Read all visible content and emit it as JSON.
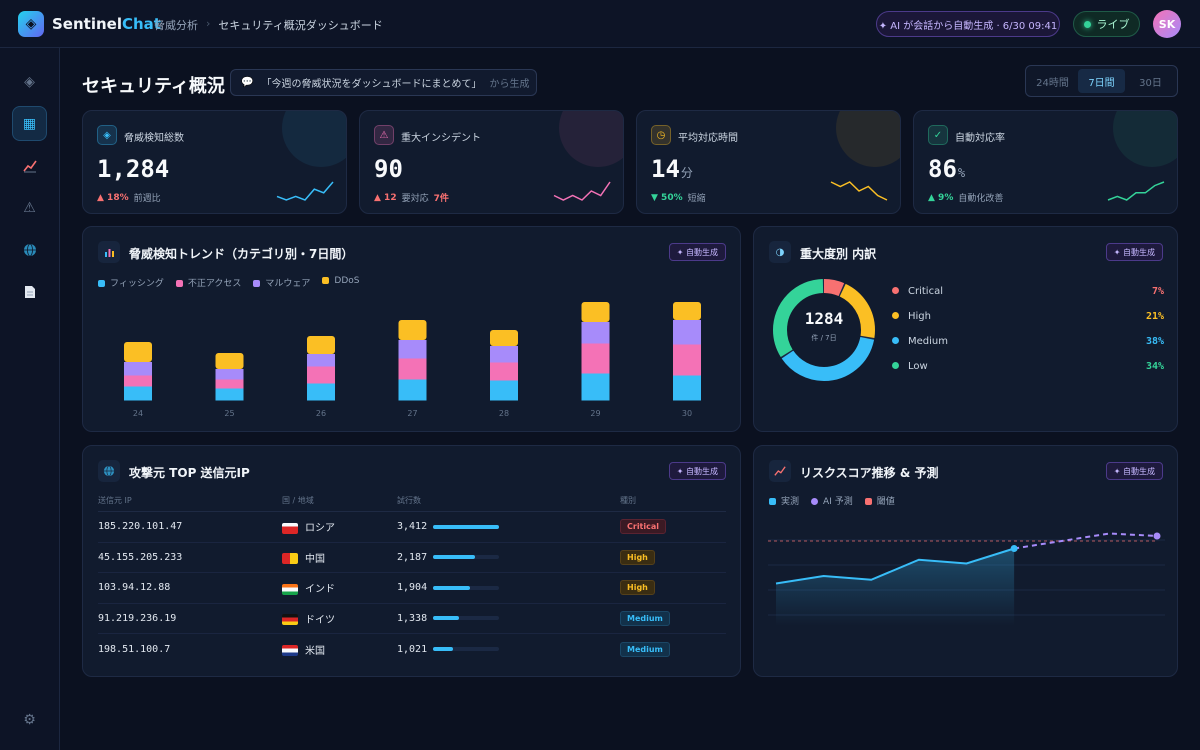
{
  "app": {
    "brand_a": "Sentinel",
    "brand_b": "Chat"
  },
  "breadcrumb": {
    "parent": "脅威分析",
    "sep": "›",
    "current": "セキュリティ概況ダッシュボード"
  },
  "header": {
    "ai_pill": "✦ AI が会話から自動生成 · 6/30 09:41",
    "live": "ライブ",
    "avatar": "SK"
  },
  "page": {
    "title": "セキュリティ概況",
    "prompt": "「今週の脅威状況をダッシュボードにまとめて」",
    "prompt_suffix": "から生成"
  },
  "range": [
    "24時間",
    "7日間",
    "30日"
  ],
  "range_selected": "7日間",
  "kpis": [
    {
      "label": "脅威検知総数",
      "value": "1,284",
      "unit": "",
      "delta": "▲ 18%",
      "extra": "",
      "note": "前週比",
      "delta_color": "#f87171",
      "color": "#38bdf8",
      "spark": [
        4,
        3,
        4,
        3,
        6,
        5,
        8
      ]
    },
    {
      "label": "重大インシデント",
      "value": "90",
      "unit": "",
      "delta": "▲ 12",
      "extra": "7件",
      "note": "要対応",
      "delta_color": "#f87171",
      "color": "#f472b6",
      "spark": [
        5,
        4,
        5,
        4,
        6,
        5,
        8
      ]
    },
    {
      "label": "平均対応時間",
      "value": "14",
      "unit": "分",
      "delta": "▼ 50%",
      "extra": "",
      "note": "短縮",
      "delta_color": "#34d399",
      "color": "#fbbf24",
      "spark": [
        7,
        6,
        7,
        5,
        6,
        4,
        3
      ]
    },
    {
      "label": "自動対応率",
      "value": "86",
      "unit": "%",
      "delta": "▲ 9%",
      "extra": "",
      "note": "自動化改善",
      "delta_color": "#34d399",
      "color": "#34d399",
      "spark": [
        3,
        4,
        3,
        5,
        5,
        7,
        8
      ]
    }
  ],
  "trend": {
    "title": "脅威検知トレンド（カテゴリ別・7日間）",
    "badge": "✦ 自動生成"
  },
  "severity": {
    "title": "重大度別 内訳",
    "badge": "✦ 自動生成",
    "total": "1284",
    "total_sub": "件 / 7日",
    "items": [
      {
        "name": "Critical",
        "pct": "7%",
        "value": 7,
        "color": "#f87171"
      },
      {
        "name": "High",
        "pct": "21%",
        "value": 21,
        "color": "#fbbf24"
      },
      {
        "name": "Medium",
        "pct": "38%",
        "value": 38,
        "color": "#38bdf8"
      },
      {
        "name": "Low",
        "pct": "34%",
        "value": 34,
        "color": "#34d399"
      }
    ]
  },
  "ips": {
    "title": "攻撃元 TOP 送信元IP",
    "badge": "✦ 自動生成",
    "headers": [
      "送信元 IP",
      "国 / 地域",
      "試行数",
      "種別"
    ],
    "rows": [
      {
        "ip": "185.220.101.47",
        "country": "ロシア",
        "count": "3,412",
        "ratio": 1.0,
        "sev": "Critical",
        "flag": "ru"
      },
      {
        "ip": "45.155.205.233",
        "country": "中国",
        "count": "2,187",
        "ratio": 0.64,
        "sev": "High",
        "flag": "cn"
      },
      {
        "ip": "103.94.12.88",
        "country": "インド",
        "count": "1,904",
        "ratio": 0.56,
        "sev": "High",
        "flag": "in"
      },
      {
        "ip": "91.219.236.19",
        "country": "ドイツ",
        "count": "1,338",
        "ratio": 0.39,
        "sev": "Medium",
        "flag": "de"
      },
      {
        "ip": "198.51.100.7",
        "country": "米国",
        "count": "1,021",
        "ratio": 0.3,
        "sev": "Medium",
        "flag": "us"
      }
    ]
  },
  "risk": {
    "title": "リスクスコア推移 & 予測",
    "badge": "✦ 自動生成",
    "legend": [
      "実測",
      "AI 予測",
      "閾値"
    ]
  },
  "chart_data": [
    {
      "type": "bar",
      "stacked": true,
      "categories": [
        "24",
        "25",
        "26",
        "27",
        "28",
        "29",
        "30"
      ],
      "series": [
        {
          "name": "フィッシング",
          "color": "#38bdf8",
          "values": [
            14,
            12,
            17,
            21,
            20,
            27,
            25
          ]
        },
        {
          "name": "不正アクセス",
          "color": "#f472b6",
          "values": [
            11,
            9,
            17,
            21,
            18,
            30,
            31
          ]
        },
        {
          "name": "マルウェア",
          "color": "#a78bfa",
          "values": [
            13,
            10,
            12,
            18,
            16,
            21,
            24
          ]
        },
        {
          "name": "DDoS",
          "color": "#fbbf24",
          "values": [
            20,
            16,
            18,
            20,
            16,
            20,
            18
          ]
        }
      ],
      "ylim": [
        0,
        110
      ]
    },
    {
      "type": "pie",
      "categories": [
        "Critical",
        "High",
        "Medium",
        "Low"
      ],
      "values": [
        7,
        21,
        38,
        34
      ]
    },
    {
      "type": "line",
      "x": [
        1,
        2,
        3,
        4,
        5,
        6,
        7,
        8,
        9
      ],
      "series": [
        {
          "name": "実測",
          "color": "#38bdf8",
          "values": [
            54,
            60,
            57,
            73,
            70,
            82,
            null,
            null,
            null
          ]
        },
        {
          "name": "AI 予測",
          "color": "#a78bfa",
          "dashed": true,
          "values": [
            null,
            null,
            null,
            null,
            null,
            82,
            88,
            94,
            92
          ]
        },
        {
          "name": "閾値",
          "color": "#f87171",
          "dashed": true,
          "values": [
            88,
            88,
            88,
            88,
            88,
            88,
            88,
            88,
            88
          ]
        }
      ],
      "ylim": [
        20,
        100
      ]
    }
  ],
  "icons": {
    "sidebar": [
      "diamond-icon",
      "grid-icon",
      "chart-icon",
      "alert-icon",
      "globe-icon",
      "document-icon",
      "gear-icon"
    ]
  }
}
